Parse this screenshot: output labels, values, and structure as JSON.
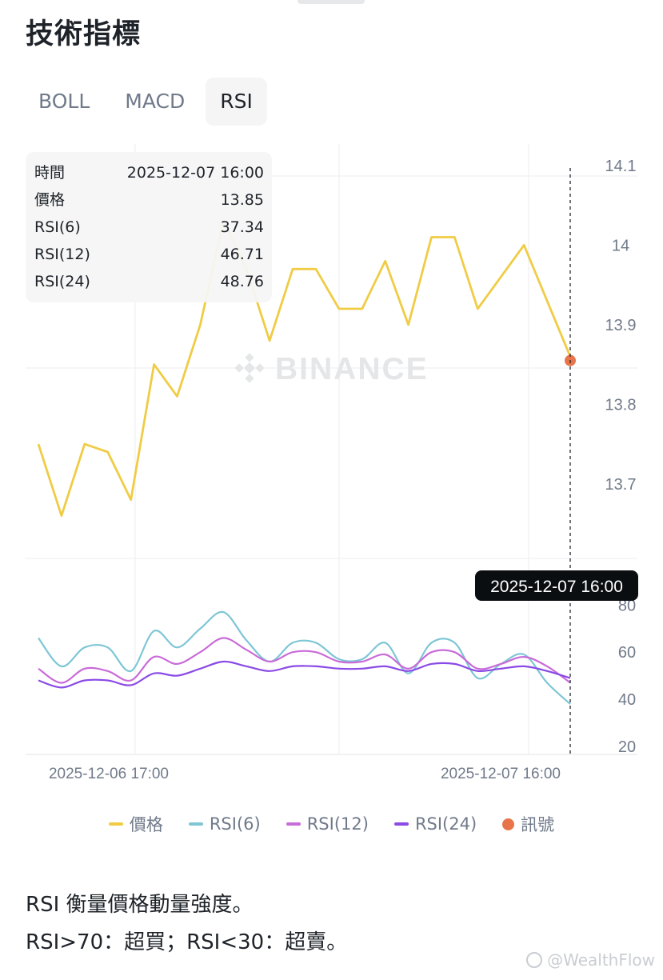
{
  "header": {
    "title": "技術指標"
  },
  "tabs": [
    {
      "label": "BOLL",
      "active": false
    },
    {
      "label": "MACD",
      "active": false
    },
    {
      "label": "RSI",
      "active": true
    }
  ],
  "tooltip": {
    "rows": [
      {
        "key": "時間",
        "value": "2025-12-07 16:00"
      },
      {
        "key": "價格",
        "value": "13.85"
      },
      {
        "key": "RSI(6)",
        "value": "37.34"
      },
      {
        "key": "RSI(12)",
        "value": "46.71"
      },
      {
        "key": "RSI(24)",
        "value": "48.76"
      }
    ]
  },
  "crosshair_label": "2025-12-07 16:00",
  "watermark_text": "BINANCE",
  "legend": [
    {
      "label": "價格",
      "color": "#f0cc45",
      "shape": "line"
    },
    {
      "label": "RSI(6)",
      "color": "#7ec6d6",
      "shape": "line"
    },
    {
      "label": "RSI(12)",
      "color": "#c96bd8",
      "shape": "line"
    },
    {
      "label": "RSI(24)",
      "color": "#8a4ae6",
      "shape": "line"
    },
    {
      "label": "訊號",
      "color": "#e8744a",
      "shape": "dot"
    }
  ],
  "description": {
    "line1": "RSI 衡量價格動量強度。",
    "line2": "RSI>70：超買；RSI<30：超賣。"
  },
  "footer_watermark": "@WealthFlow",
  "chart_data": [
    {
      "type": "line",
      "title": "",
      "x_tick_labels": [
        "2025-12-06 17:00",
        "2025-12-07 16:00"
      ],
      "y_tick_labels": [
        "14.1",
        "14",
        "13.9",
        "13.8",
        "13.7"
      ],
      "ylim": [
        13.6,
        14.12
      ],
      "series": [
        {
          "name": "價格",
          "color": "#f0cc45",
          "values": [
            13.75,
            13.66,
            13.75,
            13.74,
            13.68,
            13.85,
            13.81,
            13.9,
            14.03,
            13.97,
            13.88,
            13.97,
            13.97,
            13.92,
            13.92,
            13.98,
            13.9,
            14.01,
            14.01,
            13.92,
            13.96,
            14.0,
            13.93,
            13.86
          ]
        }
      ],
      "signal": {
        "name": "訊號",
        "color": "#e8744a",
        "value": 13.855
      },
      "grid": true
    },
    {
      "type": "line",
      "title": "",
      "y_tick_labels": [
        "80",
        "60",
        "40",
        "20"
      ],
      "ylim": [
        20,
        82
      ],
      "series": [
        {
          "name": "RSI(6)",
          "color": "#7ec6d6",
          "values": [
            66,
            54,
            62,
            62,
            52,
            69,
            62,
            70,
            77,
            65,
            56,
            64,
            64,
            57,
            57,
            64,
            51,
            64,
            64,
            49,
            55,
            59,
            47,
            38
          ]
        },
        {
          "name": "RSI(12)",
          "color": "#c96bd8",
          "values": [
            53,
            47,
            53,
            52,
            48,
            58,
            55,
            60,
            66,
            61,
            56,
            60,
            60,
            56,
            56,
            59,
            53,
            60,
            60,
            53,
            55,
            58,
            54,
            47
          ]
        },
        {
          "name": "RSI(24)",
          "color": "#8a4ae6",
          "values": [
            48,
            45,
            48,
            48,
            46,
            51,
            50,
            53,
            56,
            54,
            52,
            54,
            54,
            53,
            53,
            54,
            52,
            55,
            55,
            52,
            53,
            54,
            52,
            49
          ]
        }
      ],
      "grid": true
    }
  ]
}
